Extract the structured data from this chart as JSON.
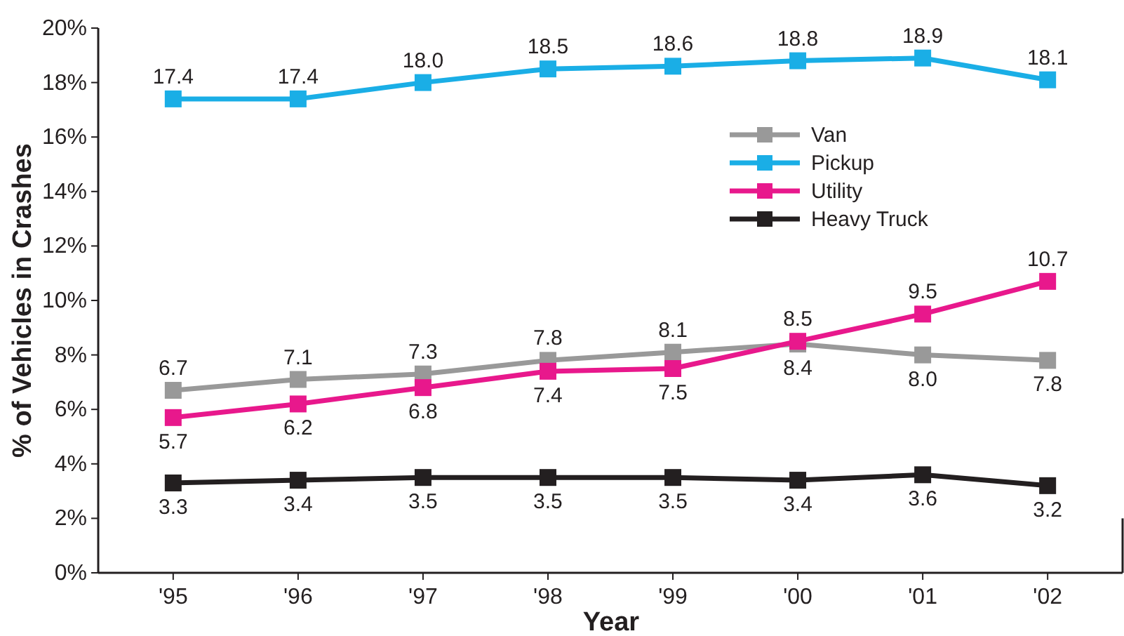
{
  "chart_data": {
    "type": "line",
    "xlabel": "Year",
    "ylabel": "% of Vehicles in Crashes",
    "categories": [
      "'95",
      "'96",
      "'97",
      "'98",
      "'99",
      "'00",
      "'01",
      "'02"
    ],
    "ylim": [
      0,
      20
    ],
    "yticks": [
      {
        "value": 0,
        "label": "0%"
      },
      {
        "value": 2,
        "label": "2%"
      },
      {
        "value": 4,
        "label": "4%"
      },
      {
        "value": 6,
        "label": "6%"
      },
      {
        "value": 8,
        "label": "8%"
      },
      {
        "value": 10,
        "label": "10%"
      },
      {
        "value": 12,
        "label": "12%"
      },
      {
        "value": 14,
        "label": "14%"
      },
      {
        "value": 16,
        "label": "16%"
      },
      {
        "value": 18,
        "label": "18%"
      },
      {
        "value": 20,
        "label": "20%"
      }
    ],
    "series": [
      {
        "name": "Van",
        "color": "#999999",
        "values": [
          6.7,
          7.1,
          7.3,
          7.8,
          8.1,
          8.4,
          8.0,
          7.8
        ],
        "value_labels": [
          "6.7",
          "7.1",
          "7.3",
          "7.8",
          "8.1",
          "8.4",
          "8.0",
          "7.8"
        ]
      },
      {
        "name": "Pickup",
        "color": "#1aaee6",
        "values": [
          17.4,
          17.4,
          18.0,
          18.5,
          18.6,
          18.8,
          18.9,
          18.1
        ],
        "value_labels": [
          "17.4",
          "17.4",
          "18.0",
          "18.5",
          "18.6",
          "18.8",
          "18.9",
          "18.1"
        ]
      },
      {
        "name": "Utility",
        "color": "#e8188c",
        "values": [
          5.7,
          6.2,
          6.8,
          7.4,
          7.5,
          8.5,
          9.5,
          10.7
        ],
        "value_labels": [
          "5.7",
          "6.2",
          "6.8",
          "7.4",
          "7.5",
          "8.5",
          "9.5",
          "10.7"
        ]
      },
      {
        "name": "Heavy Truck",
        "color": "#231f20",
        "values": [
          3.3,
          3.4,
          3.5,
          3.5,
          3.5,
          3.4,
          3.6,
          3.2
        ],
        "value_labels": [
          "3.3",
          "3.4",
          "3.5",
          "3.5",
          "3.5",
          "3.4",
          "3.6",
          "3.2"
        ]
      }
    ],
    "marker": "square",
    "line_style": "solid",
    "grid": false,
    "legend": "top right"
  }
}
